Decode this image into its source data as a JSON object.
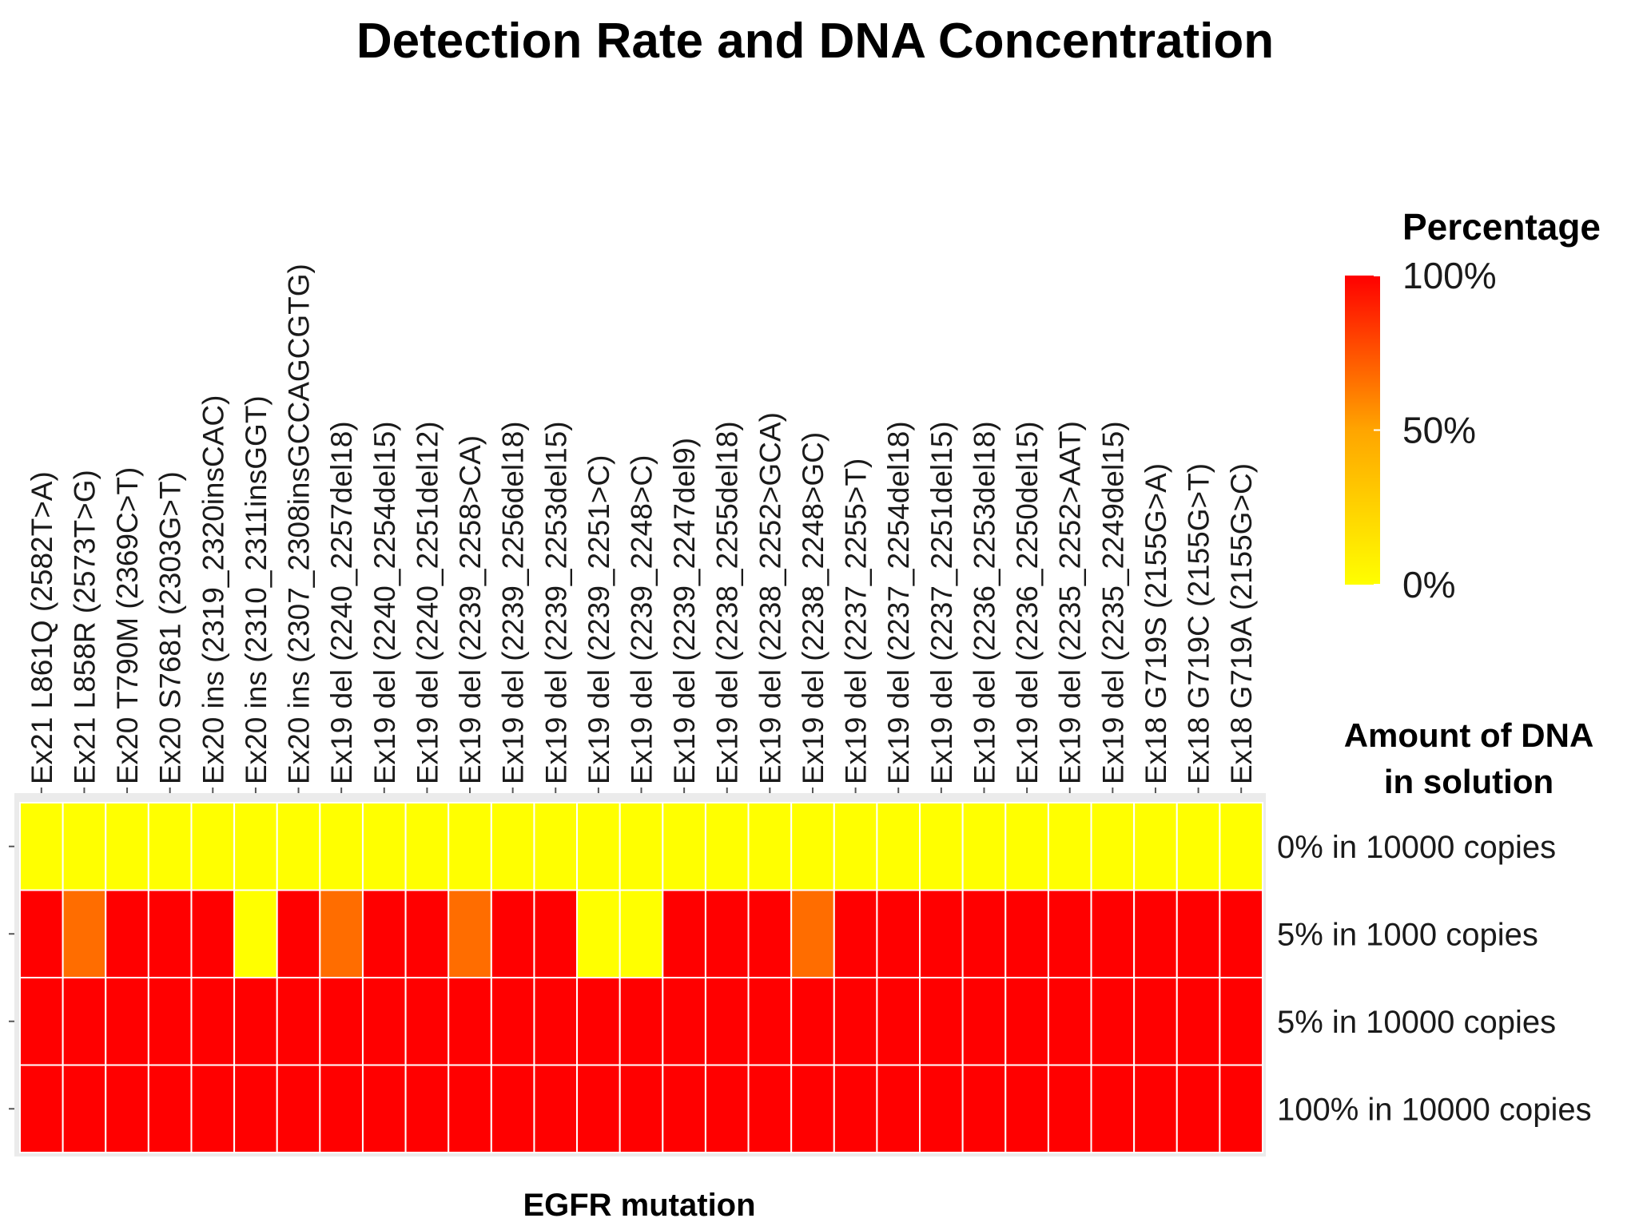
{
  "chart_data": {
    "type": "heatmap",
    "title": "Detection Rate and DNA Concentration",
    "xlabel": "EGFR mutation",
    "ylabel_title": [
      "Amount of DNA",
      "in solution"
    ],
    "legend": {
      "title": "Percentage",
      "labels": [
        "100%",
        "50%",
        "0%"
      ],
      "range": [
        0,
        100
      ],
      "colors": {
        "low": "#ffff00",
        "mid": "#ffa500",
        "high": "#ff0000"
      }
    },
    "columns": [
      "Ex21 L861Q (2582T>A)",
      "Ex21 L858R (2573T>G)",
      "Ex20 T790M (2369C>T)",
      "Ex20 S7681 (2303G>T)",
      "Ex20 ins (2319_2320insCAC)",
      "Ex20 ins (2310_2311insGGT)",
      "Ex20 ins (2307_2308insGCCAGCGTG)",
      "Ex19 del (2240_2257del18)",
      "Ex19 del (2240_2254del15)",
      "Ex19 del (2240_2251del12)",
      "Ex19 del (2239_2258>CA)",
      "Ex19 del (2239_2256del18)",
      "Ex19 del (2239_2253del15)",
      "Ex19 del (2239_2251>C)",
      "Ex19 del (2239_2248>C)",
      "Ex19 del (2239_2247del9)",
      "Ex19 del (2238_2255del18)",
      "Ex19 del (2238_2252>GCA)",
      "Ex19 del (2238_2248>GC)",
      "Ex19 del (2237_2255>T)",
      "Ex19 del (2237_2254del18)",
      "Ex19 del (2237_2251del15)",
      "Ex19 del (2236_2253del18)",
      "Ex19 del (2236_2250del15)",
      "Ex19 del (2235_2252>AAT)",
      "Ex19 del (2235_2249del15)",
      "Ex18 G719S (2155G>A)",
      "Ex18 G719C (2155G>T)",
      "Ex18 G719A (2155G>C)"
    ],
    "rows": [
      "0% in 10000 copies",
      "5% in 1000 copies",
      "5% in 10000 copies",
      "100% in 10000 copies"
    ],
    "values": [
      [
        0,
        0,
        0,
        0,
        0,
        0,
        0,
        0,
        0,
        0,
        0,
        0,
        0,
        0,
        0,
        0,
        0,
        0,
        0,
        0,
        0,
        0,
        0,
        0,
        0,
        0,
        0,
        0,
        0
      ],
      [
        100,
        67,
        100,
        100,
        100,
        0,
        100,
        67,
        100,
        100,
        67,
        100,
        100,
        0,
        0,
        100,
        100,
        100,
        67,
        100,
        100,
        100,
        100,
        100,
        100,
        100,
        100,
        100,
        100
      ],
      [
        100,
        100,
        100,
        100,
        100,
        100,
        100,
        100,
        100,
        100,
        100,
        100,
        100,
        100,
        100,
        100,
        100,
        100,
        100,
        100,
        100,
        100,
        100,
        100,
        100,
        100,
        100,
        100,
        100
      ],
      [
        100,
        100,
        100,
        100,
        100,
        100,
        100,
        100,
        100,
        100,
        100,
        100,
        100,
        100,
        100,
        100,
        100,
        100,
        100,
        100,
        100,
        100,
        100,
        100,
        100,
        100,
        100,
        100,
        100
      ]
    ]
  }
}
